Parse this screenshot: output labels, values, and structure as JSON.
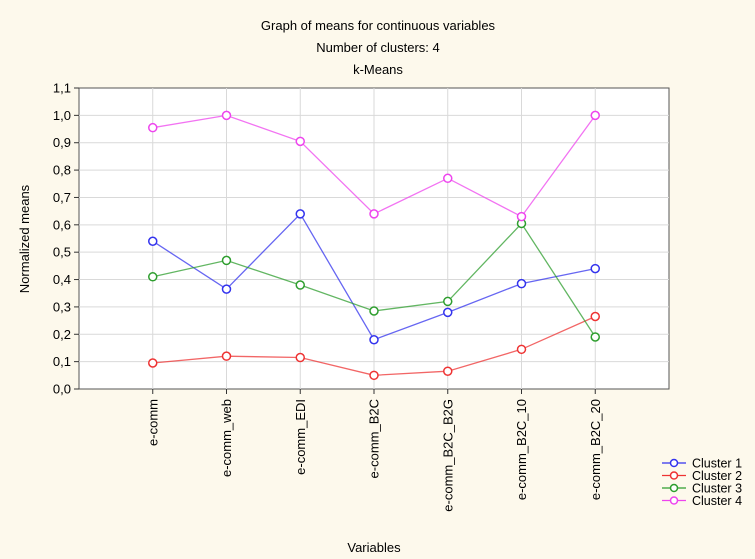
{
  "chart_data": {
    "type": "line",
    "title": "Graph of means for continuous variables",
    "subtitle_lines": [
      "Number of clusters: 4",
      "k-Means"
    ],
    "xlabel": "Variables",
    "ylabel": "Normalized means",
    "ylim": [
      0,
      1.1
    ],
    "yticks": [
      "0,0",
      "0,1",
      "0,2",
      "0,3",
      "0,4",
      "0,5",
      "0,6",
      "0,7",
      "0,8",
      "0,9",
      "1,0",
      "1,1"
    ],
    "categories": [
      "e-comm",
      "e-comm_web",
      "e-comm_EDI",
      "e-comm_B2C",
      "e-comm_B2C_B2G",
      "e-comm_B2C_10",
      "e-comm_B2C_20"
    ],
    "grid": true,
    "legend_position": "bottom-right",
    "series": [
      {
        "name": "Cluster 1",
        "color": "#3333ee",
        "values": [
          0.54,
          0.365,
          0.64,
          0.18,
          0.28,
          0.385,
          0.44
        ]
      },
      {
        "name": "Cluster 2",
        "color": "#ee3333",
        "values": [
          0.095,
          0.12,
          0.115,
          0.05,
          0.065,
          0.145,
          0.265
        ]
      },
      {
        "name": "Cluster 3",
        "color": "#2e9e2e",
        "values": [
          0.41,
          0.47,
          0.38,
          0.285,
          0.32,
          0.605,
          0.19
        ]
      },
      {
        "name": "Cluster 4",
        "color": "#ee44ee",
        "values": [
          0.955,
          1.0,
          0.905,
          0.64,
          0.77,
          0.63,
          1.0
        ]
      }
    ]
  }
}
